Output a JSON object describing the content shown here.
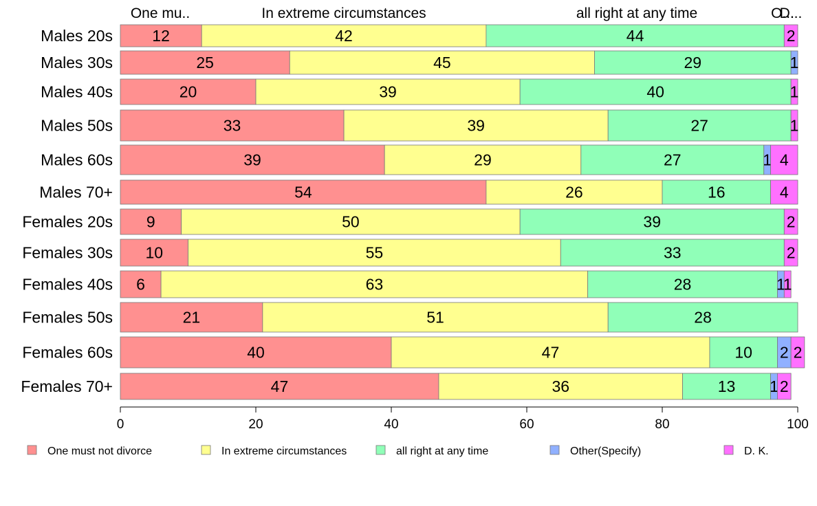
{
  "chart_data": {
    "type": "bar",
    "orientation": "horizontal",
    "stacked": true,
    "title": "",
    "xlabel": "",
    "ylabel": "",
    "xlim": [
      0,
      100
    ],
    "x_ticks": [
      "0",
      "20",
      "40",
      "60",
      "80",
      "100"
    ],
    "grid": false,
    "legend_placement": "bottom",
    "categories": [
      "Males 20s",
      "Males 30s",
      "Males 40s",
      "Males 50s",
      "Males 60s",
      "Males 70+",
      "Females 20s",
      "Females 30s",
      "Females 40s",
      "Females 50s",
      "Females 60s",
      "Females 70+"
    ],
    "top_labels": [
      "One mu..",
      "In extreme circumstances",
      "all right at any time",
      "O...",
      "D..."
    ],
    "series": [
      {
        "name": "One must not divorce",
        "color": "#FF9090",
        "values": [
          12,
          25,
          20,
          33,
          39,
          54,
          9,
          10,
          6,
          21,
          40,
          47
        ]
      },
      {
        "name": "In extreme circumstances",
        "color": "#FFFF90",
        "values": [
          42,
          45,
          39,
          39,
          29,
          26,
          50,
          55,
          63,
          51,
          47,
          36
        ]
      },
      {
        "name": "all right at any time",
        "color": "#90FFB8",
        "values": [
          44,
          29,
          40,
          27,
          27,
          16,
          39,
          33,
          28,
          28,
          10,
          13
        ]
      },
      {
        "name": "Other(Specify)",
        "color": "#90B0FF",
        "values": [
          0,
          1,
          0,
          0,
          1,
          0,
          0,
          0,
          1,
          0,
          2,
          1
        ]
      },
      {
        "name": "D. K.",
        "color": "#FF70FF",
        "values": [
          2,
          0,
          1,
          1,
          4,
          4,
          2,
          2,
          1,
          0,
          2,
          2
        ]
      }
    ]
  }
}
